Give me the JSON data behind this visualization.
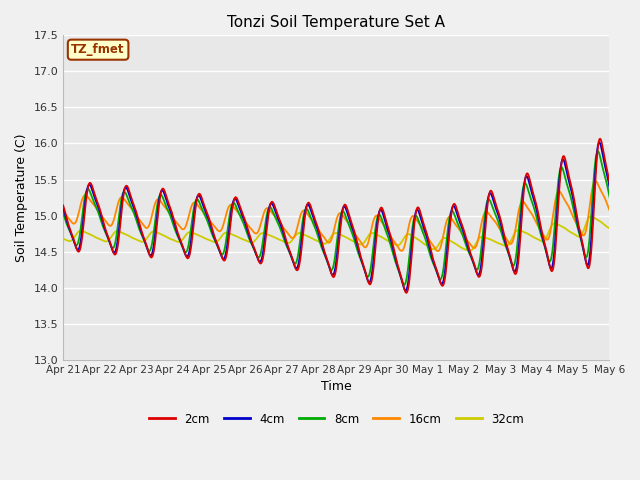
{
  "title": "Tonzi Soil Temperature Set A",
  "xlabel": "Time",
  "ylabel": "Soil Temperature (C)",
  "ylim": [
    13.0,
    17.5
  ],
  "yticks": [
    13.0,
    13.5,
    14.0,
    14.5,
    15.0,
    15.5,
    16.0,
    16.5,
    17.0,
    17.5
  ],
  "bg_color": "#f0f0f0",
  "plot_bg_color": "#e8e8e8",
  "annotation_text": "TZ_fmet",
  "annotation_bg": "#ffffcc",
  "annotation_border": "#993300",
  "series_colors": {
    "2cm": "#dd0000",
    "4cm": "#0000cc",
    "8cm": "#00aa00",
    "16cm": "#ff8800",
    "32cm": "#cccc00"
  },
  "xtick_labels": [
    "Apr 21",
    "Apr 22",
    "Apr 23",
    "Apr 24",
    "Apr 25",
    "Apr 26",
    "Apr 27",
    "Apr 28",
    "Apr 29",
    "Apr 30",
    "May 1",
    "May 2",
    "May 3",
    "May 4",
    "May 5",
    "May 6"
  ],
  "figsize": [
    6.4,
    4.8
  ],
  "dpi": 100
}
